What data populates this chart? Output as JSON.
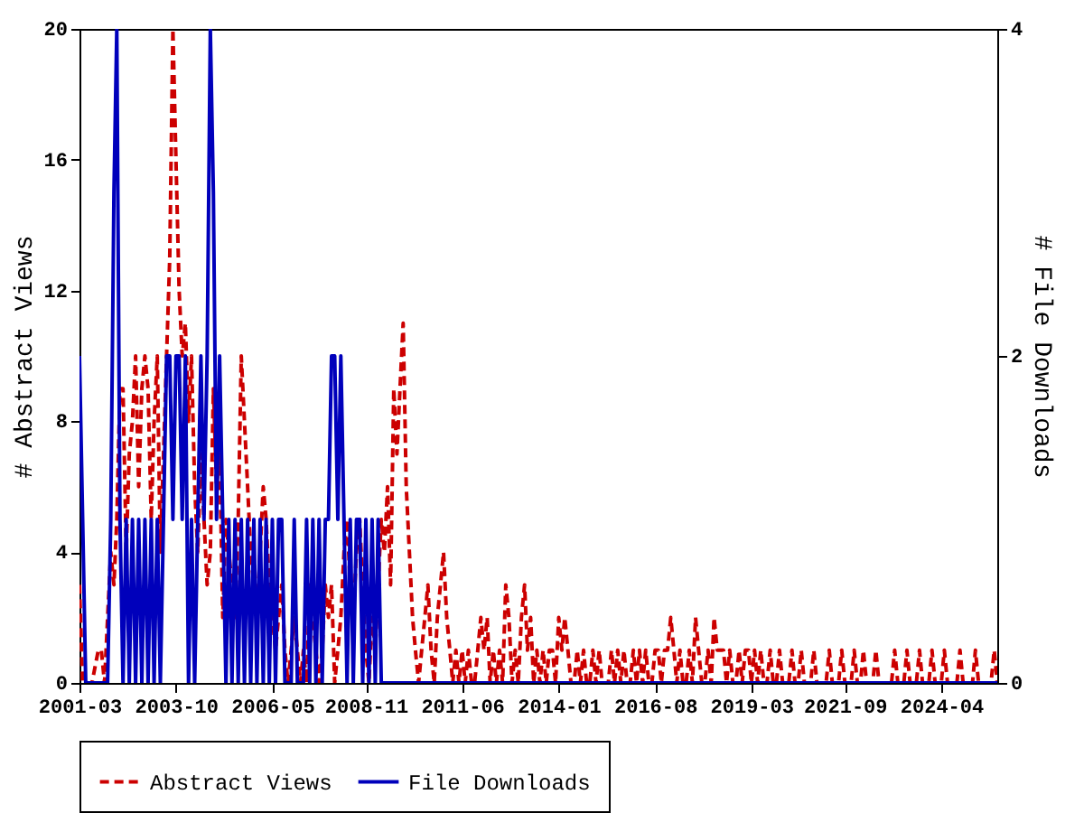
{
  "chart_data": {
    "type": "line",
    "ylabel": "# Abstract Views",
    "y2label": "# File Downloads",
    "xlim": [
      "2001-03",
      "2025-10"
    ],
    "xticks": [
      "2001-03",
      "2003-10",
      "2006-05",
      "2008-11",
      "2011-06",
      "2014-01",
      "2016-08",
      "2019-03",
      "2021-09",
      "2024-04"
    ],
    "ylim": [
      0,
      20
    ],
    "yticks": [
      0,
      4,
      8,
      12,
      16,
      20
    ],
    "y2lim": [
      0,
      4
    ],
    "y2ticks": [
      0,
      2,
      4
    ],
    "grid": false,
    "legend": "bottom",
    "marker": "none",
    "series": [
      {
        "name": "Abstract Views",
        "color": "#cc0000",
        "line_style": "dashed",
        "x": [
          "2001-03",
          "2001-04",
          "2001-05",
          "2001-06",
          "2001-07",
          "2001-08",
          "2001-09",
          "2001-10",
          "2001-11",
          "2001-12",
          "2002-01",
          "2002-02",
          "2002-03",
          "2002-04",
          "2002-05",
          "2002-06",
          "2002-07",
          "2002-08",
          "2002-09",
          "2002-10",
          "2002-11",
          "2002-12",
          "2003-01",
          "2003-02",
          "2003-03",
          "2003-04",
          "2003-05",
          "2003-06",
          "2003-07",
          "2003-08",
          "2003-09",
          "2003-10",
          "2003-11",
          "2003-12",
          "2004-01",
          "2004-02",
          "2004-03",
          "2004-04",
          "2004-05",
          "2004-06",
          "2004-07",
          "2004-08",
          "2004-09",
          "2004-10",
          "2004-11",
          "2004-12",
          "2005-01",
          "2005-02",
          "2005-03",
          "2005-04",
          "2005-05",
          "2005-06",
          "2005-07",
          "2005-08",
          "2005-09",
          "2005-10",
          "2005-11",
          "2005-12",
          "2006-01",
          "2006-02",
          "2006-03",
          "2006-04",
          "2006-05",
          "2006-06",
          "2006-07",
          "2006-08",
          "2006-09",
          "2006-10",
          "2006-11",
          "2006-12",
          "2007-01",
          "2007-02",
          "2007-03",
          "2007-04",
          "2007-05",
          "2007-06",
          "2007-07",
          "2007-08",
          "2007-09",
          "2007-10",
          "2007-11",
          "2007-12",
          "2008-01",
          "2008-02",
          "2008-03",
          "2008-04",
          "2008-05",
          "2008-06",
          "2008-07",
          "2008-08",
          "2008-09",
          "2008-10",
          "2008-11",
          "2008-12",
          "2009-01",
          "2009-02",
          "2009-03",
          "2009-04",
          "2009-05",
          "2009-06",
          "2009-07",
          "2009-08",
          "2009-09",
          "2009-10",
          "2009-11",
          "2009-12",
          "2010-01",
          "2010-02",
          "2010-03",
          "2010-04",
          "2010-05",
          "2010-06",
          "2010-07",
          "2010-08",
          "2010-09",
          "2010-10",
          "2010-11",
          "2010-12",
          "2011-01",
          "2011-02",
          "2011-03",
          "2011-04",
          "2011-05",
          "2011-06",
          "2011-07",
          "2011-08",
          "2011-09",
          "2011-10",
          "2011-11",
          "2011-12",
          "2012-01",
          "2012-02",
          "2012-03",
          "2012-04",
          "2012-05",
          "2012-06",
          "2012-07",
          "2012-08",
          "2012-09",
          "2012-10",
          "2012-11",
          "2012-12",
          "2013-01",
          "2013-02",
          "2013-03",
          "2013-04",
          "2013-05",
          "2013-06",
          "2013-07",
          "2013-08",
          "2013-09",
          "2013-10",
          "2013-11",
          "2013-12",
          "2014-01",
          "2014-02",
          "2014-03",
          "2014-04",
          "2014-05",
          "2014-06",
          "2014-07",
          "2014-08",
          "2014-09",
          "2014-10",
          "2014-11",
          "2014-12",
          "2015-01",
          "2015-02",
          "2015-03",
          "2015-04",
          "2015-05",
          "2015-06",
          "2015-07",
          "2015-08",
          "2015-09",
          "2015-10",
          "2015-11",
          "2015-12",
          "2016-01",
          "2016-02",
          "2016-03",
          "2016-04",
          "2016-05",
          "2016-06",
          "2016-07",
          "2016-08",
          "2016-09",
          "2016-10",
          "2016-11",
          "2016-12",
          "2017-01",
          "2017-02",
          "2017-03",
          "2017-04",
          "2017-05",
          "2017-06",
          "2017-07",
          "2017-08",
          "2017-09",
          "2017-10",
          "2017-11",
          "2017-12",
          "2018-01",
          "2018-02",
          "2018-03",
          "2018-04",
          "2018-05",
          "2018-06",
          "2018-07",
          "2018-08",
          "2018-09",
          "2018-10",
          "2018-11",
          "2018-12",
          "2019-01",
          "2019-02",
          "2019-03",
          "2019-04",
          "2019-05",
          "2019-06",
          "2019-07",
          "2019-08",
          "2019-09",
          "2019-10",
          "2019-11",
          "2019-12",
          "2020-01",
          "2020-02",
          "2020-03",
          "2020-04",
          "2020-05",
          "2020-06",
          "2020-07",
          "2020-08",
          "2020-09",
          "2020-10",
          "2020-11",
          "2020-12",
          "2021-01",
          "2021-02",
          "2021-03",
          "2021-04",
          "2021-05",
          "2021-06",
          "2021-07",
          "2021-08",
          "2021-09",
          "2021-10",
          "2021-11",
          "2021-12",
          "2022-01",
          "2022-02",
          "2022-03",
          "2022-04",
          "2022-05",
          "2022-06",
          "2022-07",
          "2022-08",
          "2022-09",
          "2022-10",
          "2022-11",
          "2022-12",
          "2023-01",
          "2023-02",
          "2023-03",
          "2023-04",
          "2023-05",
          "2023-06",
          "2023-07",
          "2023-08",
          "2023-09",
          "2023-10",
          "2023-11",
          "2023-12",
          "2024-01",
          "2024-02",
          "2024-03",
          "2024-04",
          "2024-05",
          "2024-06",
          "2024-07",
          "2024-08",
          "2024-09",
          "2024-10",
          "2024-11",
          "2024-12",
          "2025-01",
          "2025-02",
          "2025-03",
          "2025-04",
          "2025-05",
          "2025-06",
          "2025-07",
          "2025-08",
          "2025-09",
          "2025-10"
        ],
        "values": [
          3,
          0,
          0,
          0,
          0,
          0.5,
          1,
          1,
          0,
          2,
          4,
          3,
          5,
          9,
          9,
          4,
          7,
          8,
          10,
          6,
          9,
          10,
          9,
          5,
          8,
          10,
          4,
          7,
          10,
          13,
          20,
          16,
          12,
          10,
          11,
          8,
          10,
          6,
          4,
          7,
          5,
          3,
          4,
          9,
          6,
          7,
          2,
          5,
          4,
          3,
          2,
          5,
          10,
          8,
          6,
          4,
          3,
          2,
          4,
          6,
          5,
          3,
          2,
          1,
          2,
          3,
          1,
          0,
          1,
          2,
          1,
          0,
          1,
          0,
          3,
          2,
          1,
          0,
          1,
          3,
          2,
          3,
          0,
          1,
          2,
          4,
          5,
          3,
          2,
          4,
          5,
          3,
          1,
          0,
          2,
          1,
          3,
          5,
          4,
          6,
          3,
          9,
          7,
          9,
          11,
          6,
          4,
          2,
          1,
          0,
          1,
          2,
          3,
          1,
          0,
          2,
          3,
          4,
          2,
          1,
          0,
          1,
          0,
          1,
          0,
          1,
          0,
          0,
          1,
          2,
          1,
          2,
          0,
          1,
          0,
          1,
          0,
          3,
          2,
          0,
          1,
          0,
          2,
          3,
          1,
          2,
          0,
          1,
          0,
          1,
          0,
          1,
          1,
          0,
          2,
          1,
          2,
          1,
          0,
          0,
          1,
          0,
          1,
          0,
          0,
          1,
          0,
          1,
          0,
          0,
          0,
          1,
          0,
          1,
          0,
          1,
          0,
          0,
          1,
          0,
          1,
          0,
          1,
          0,
          0,
          1,
          1,
          0,
          1,
          1,
          2,
          1,
          0,
          1,
          0,
          0,
          1,
          0,
          2,
          1,
          0,
          0,
          1,
          0,
          2,
          1,
          1,
          1,
          0,
          1,
          0,
          0,
          1,
          0,
          1,
          1,
          0,
          1,
          0,
          1,
          0,
          0,
          1,
          0,
          0,
          1,
          0,
          0,
          0,
          1,
          0,
          0,
          1,
          0,
          0,
          0,
          1,
          0,
          0,
          0,
          0,
          1,
          0,
          0,
          0,
          1,
          0,
          0,
          0,
          1,
          0,
          0,
          1,
          0,
          0,
          0,
          1,
          0,
          0,
          0,
          0,
          0,
          1,
          0,
          0,
          0,
          1,
          0,
          0,
          0,
          1,
          0,
          0,
          0,
          1,
          0,
          0,
          0,
          1,
          0,
          0,
          0,
          0,
          1,
          0,
          0,
          0,
          0,
          1,
          0,
          0,
          0,
          0,
          0,
          1,
          0
        ]
      },
      {
        "name": "File Downloads",
        "color": "#0000bb",
        "line_style": "solid",
        "axis": "y2",
        "x": [
          "2001-03",
          "2001-04",
          "2001-05",
          "2001-06",
          "2001-07",
          "2001-08",
          "2001-09",
          "2001-10",
          "2001-11",
          "2001-12",
          "2002-01",
          "2002-02",
          "2002-03",
          "2002-04",
          "2002-05",
          "2002-06",
          "2002-07",
          "2002-08",
          "2002-09",
          "2002-10",
          "2002-11",
          "2002-12",
          "2003-01",
          "2003-02",
          "2003-03",
          "2003-04",
          "2003-05",
          "2003-06",
          "2003-07",
          "2003-08",
          "2003-09",
          "2003-10",
          "2003-11",
          "2003-12",
          "2004-01",
          "2004-02",
          "2004-03",
          "2004-04",
          "2004-05",
          "2004-06",
          "2004-07",
          "2004-08",
          "2004-09",
          "2004-10",
          "2004-11",
          "2004-12",
          "2005-01",
          "2005-02",
          "2005-03",
          "2005-04",
          "2005-05",
          "2005-06",
          "2005-07",
          "2005-08",
          "2005-09",
          "2005-10",
          "2005-11",
          "2005-12",
          "2006-01",
          "2006-02",
          "2006-03",
          "2006-04",
          "2006-05",
          "2006-06",
          "2006-07",
          "2006-08",
          "2006-09",
          "2006-10",
          "2006-11",
          "2006-12",
          "2007-01",
          "2007-02",
          "2007-03",
          "2007-04",
          "2007-05",
          "2007-06",
          "2007-07",
          "2007-08",
          "2007-09",
          "2007-10",
          "2007-11",
          "2007-12",
          "2008-01",
          "2008-02",
          "2008-03",
          "2008-04",
          "2008-05",
          "2008-06",
          "2008-07",
          "2008-08",
          "2008-09",
          "2008-10",
          "2008-11",
          "2008-12",
          "2009-01",
          "2009-02",
          "2009-03",
          "2009-04",
          "2009-05",
          "2025-10"
        ],
        "values": [
          2,
          1,
          0,
          0,
          0,
          0,
          0,
          0,
          0,
          0,
          1,
          3,
          4,
          1,
          0,
          1,
          0,
          1,
          0,
          1,
          0,
          1,
          0,
          1,
          0,
          1,
          0,
          1,
          2,
          2,
          1,
          2,
          2,
          1,
          2,
          0,
          1,
          0,
          1,
          2,
          1,
          2,
          4,
          3,
          1,
          2,
          1,
          0,
          1,
          0,
          1,
          0,
          1,
          0,
          1,
          0,
          1,
          0,
          1,
          0,
          1,
          0,
          1,
          0,
          1,
          1,
          0,
          0,
          0,
          1,
          0,
          0,
          0,
          1,
          0,
          1,
          0,
          1,
          0,
          1,
          1,
          2,
          2,
          1,
          2,
          1,
          0,
          1,
          0,
          1,
          1,
          0,
          1,
          0,
          1,
          0,
          1,
          0,
          0,
          0
        ]
      }
    ]
  }
}
